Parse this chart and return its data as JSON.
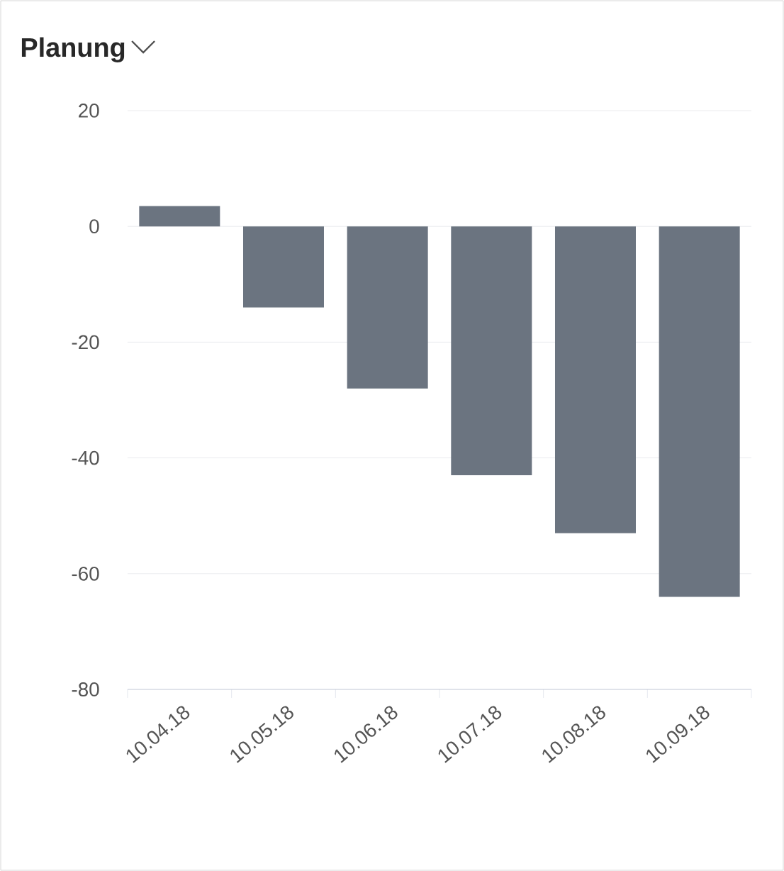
{
  "chart_data": {
    "type": "bar",
    "title": "Planung",
    "categories": [
      "10.04.18",
      "10.05.18",
      "10.06.18",
      "10.07.18",
      "10.08.18",
      "10.09.18"
    ],
    "values": [
      3.5,
      -14,
      -28,
      -43,
      -53,
      -64
    ],
    "color": "#6b7480",
    "ylim": [
      -80,
      20
    ],
    "yticks": [
      -80,
      -60,
      -40,
      -20,
      0,
      20
    ],
    "grid": "y"
  }
}
